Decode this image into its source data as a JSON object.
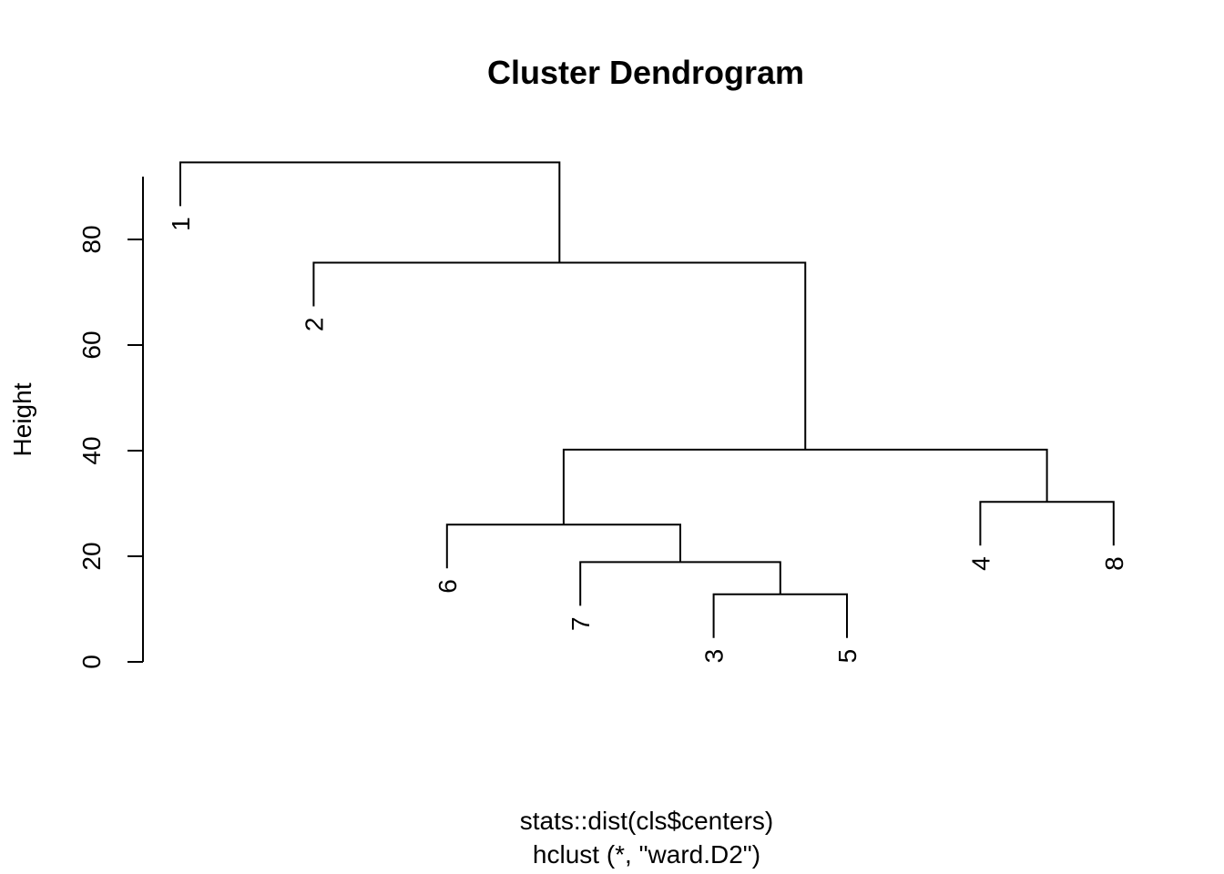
{
  "chart_data": {
    "type": "dendrogram",
    "title": "Cluster Dendrogram",
    "ylabel": "Height",
    "xlabel": "stats::dist(cls$centers)",
    "sub": "hclust (*, \"ward.D2\")",
    "ylim": [
      0,
      95
    ],
    "yticks": [
      0,
      20,
      40,
      60,
      80
    ],
    "leaf_order": [
      "1",
      "2",
      "6",
      "7",
      "3",
      "5",
      "4",
      "8"
    ],
    "merges": [
      {
        "left": "3",
        "right": "5",
        "height": 12.8
      },
      {
        "left": "7",
        "right": "3+5",
        "height": 18.9
      },
      {
        "left": "4",
        "right": "8",
        "height": 30.3
      },
      {
        "left": "6",
        "right": "7+3+5",
        "height": 26.0
      },
      {
        "left": "6+7+3+5",
        "right": "4+8",
        "height": 40.2
      },
      {
        "left": "2",
        "right": "6+7+3+5+4+8",
        "height": 75.6
      },
      {
        "left": "1",
        "right": "2+6+7+3+5+4+8",
        "height": 94.6
      }
    ]
  }
}
